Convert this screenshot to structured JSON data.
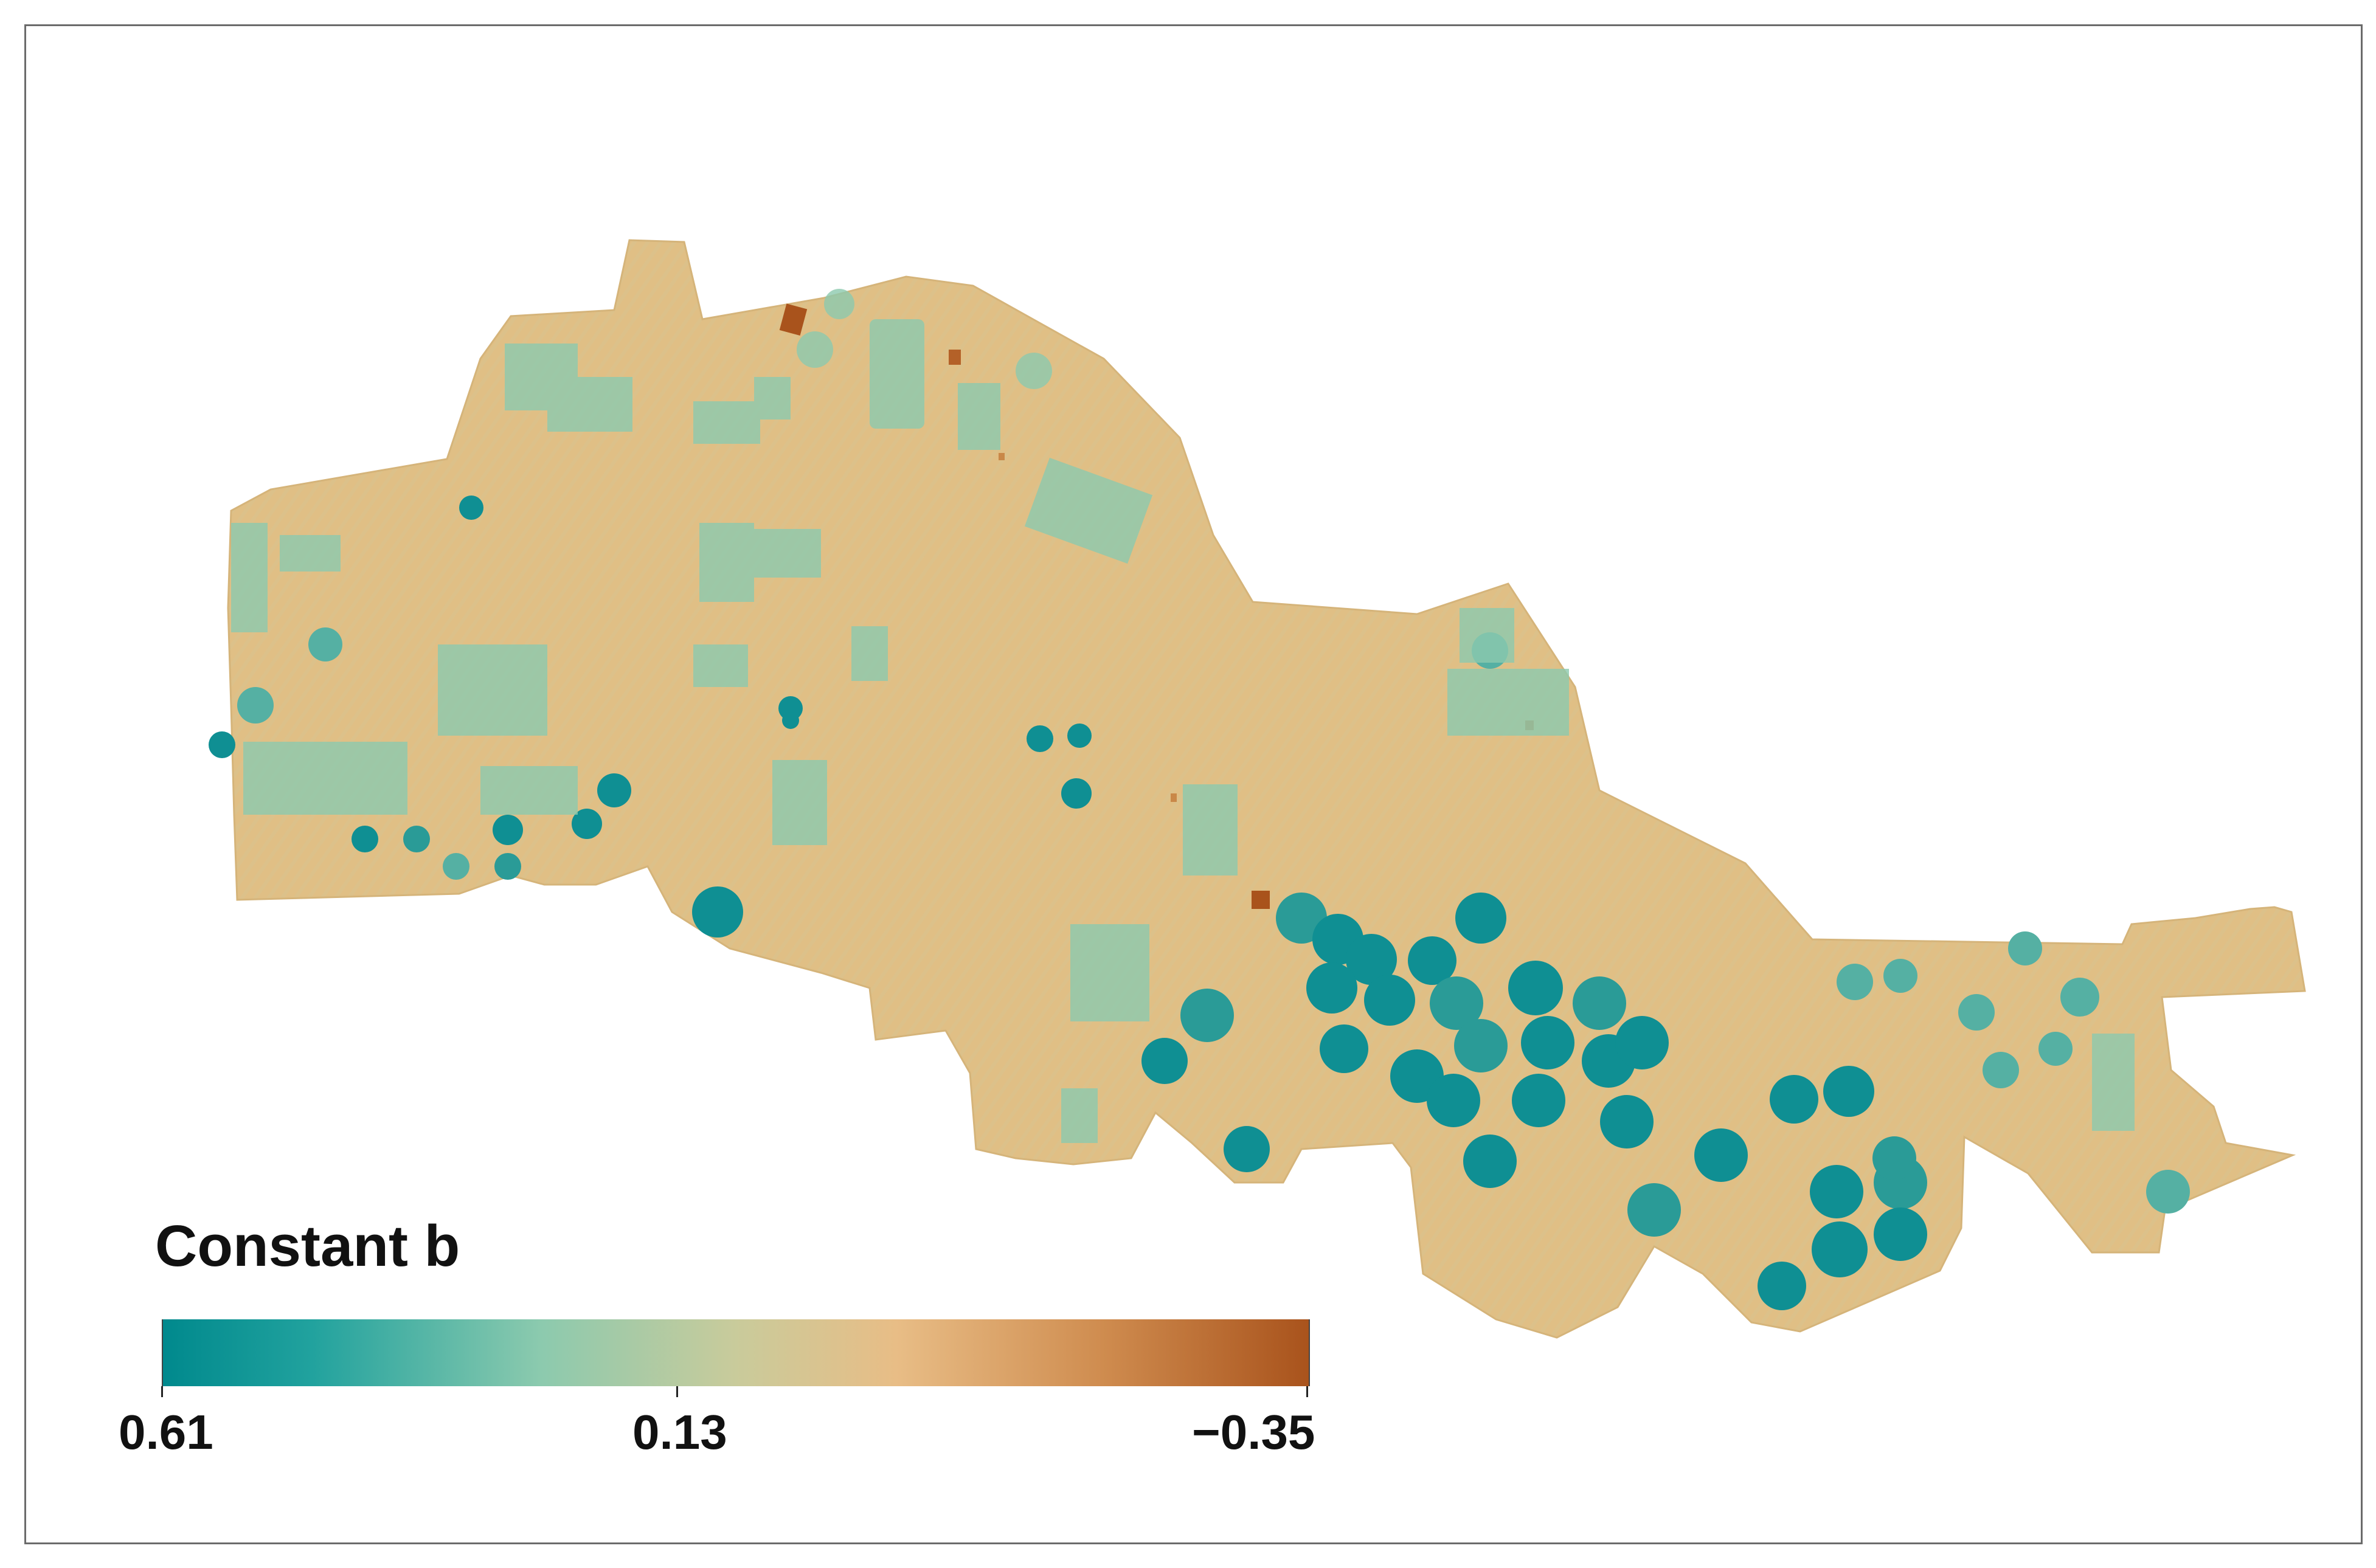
{
  "legend": {
    "title": "Constant b",
    "min_label": "0.61",
    "mid_label": "0.13",
    "max_label": "−0.35",
    "min_value": 0.61,
    "mid_value": 0.13,
    "max_value": -0.35,
    "colors": [
      "#00898d",
      "#21a29e",
      "#8ccaae",
      "#c9cb9b",
      "#e8bd86",
      "#cf8c4f",
      "#a9531c"
    ]
  },
  "map": {
    "background_value": 0.13,
    "background_color": "#e0bf85",
    "low_color": "#a9531c",
    "high_color": "#00898d"
  }
}
